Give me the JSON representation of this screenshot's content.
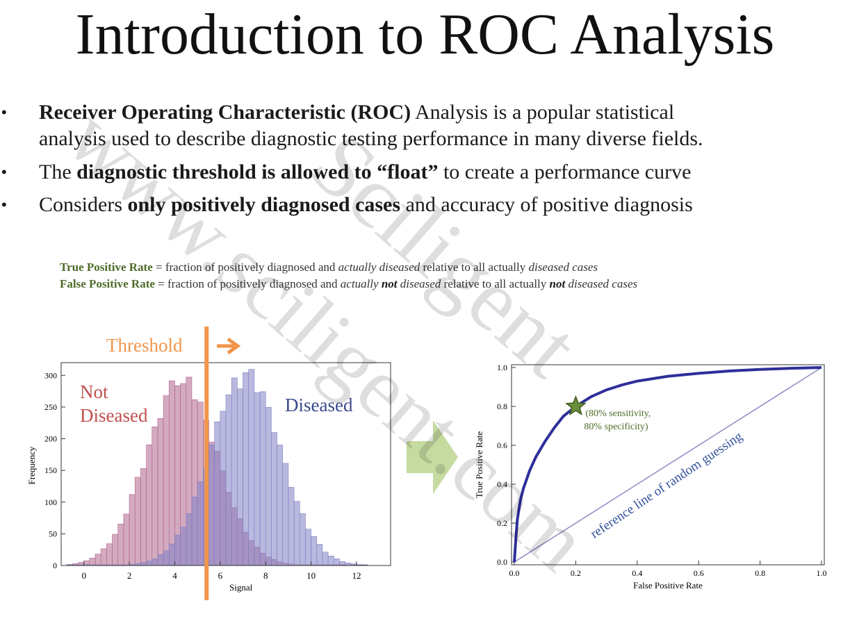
{
  "title": "Introduction to ROC Analysis",
  "bullets": [
    {
      "parts": [
        {
          "t": "Receiver Operating Characteristic (ROC)",
          "b": true
        },
        {
          "t": " Analysis is a popular statistical"
        }
      ],
      "line2": "analysis used to describe diagnostic testing performance in many diverse fields."
    },
    {
      "parts": [
        {
          "t": "The "
        },
        {
          "t": "diagnostic threshold is allowed to “float”",
          "b": true
        },
        {
          "t": " to create a performance curve"
        }
      ]
    },
    {
      "parts": [
        {
          "t": "Considers "
        },
        {
          "t": "only positively diagnosed cases",
          "b": true
        },
        {
          "t": " and accuracy of positive diagnosis"
        }
      ]
    }
  ],
  "definitions": {
    "tpr_term": "True Positive Rate",
    "tpr_mid": " = fraction of positively diagnosed and ",
    "tpr_em": "actually diseased",
    "tpr_tail": " relative to all actually ",
    "tpr_em2": "diseased cases",
    "fpr_term": "False Positive Rate",
    "fpr_mid": " = fraction of positively diagnosed and ",
    "fpr_em_a": "actually ",
    "fpr_em_not": "not",
    "fpr_em_b": " diseased",
    "fpr_tail": " relative to all actually ",
    "fpr_em2_not": "not",
    "fpr_em2_b": " diseased cases"
  },
  "histogram": {
    "threshold_label": "Threshold",
    "not_diseased_label_1": "Not",
    "not_diseased_label_2": "Diseased",
    "diseased_label": "Diseased",
    "xlabel": "Signal",
    "ylabel": "Frequency",
    "colors": {
      "not_diseased": "#b0648c",
      "diseased": "#7f80c4",
      "threshold": "#f0954a",
      "nd_text": "#c0504d",
      "d_text": "#3b4a8c"
    }
  },
  "roc": {
    "xlabel": "False Positive Rate",
    "ylabel": "True Positive Rate",
    "point_label_1": "(80% sensitivity,",
    "point_label_2": "80% specificity)",
    "reference_label": "reference line of random guessing",
    "colors": {
      "curve": "#2e2e9a",
      "reference": "#8b8bc8",
      "star": "#6b8e3a",
      "label": "#4e6b2a",
      "ref_text": "#34519c"
    }
  },
  "watermark": {
    "line1": "Sciligent",
    "line2": "www.sciligent.com"
  },
  "chart_data": [
    {
      "type": "bar",
      "xlabel": "Signal",
      "ylabel": "Frequency",
      "xlim": [
        -1,
        13.5
      ],
      "ylim": [
        0,
        320
      ],
      "x_ticks": [
        0,
        2,
        4,
        6,
        8,
        10,
        12
      ],
      "y_ticks": [
        0,
        50,
        100,
        150,
        200,
        250,
        300
      ],
      "threshold": 5.4,
      "series": [
        {
          "name": "Not Diseased",
          "mean": 4.3,
          "sd": 1.55,
          "peak": 287
        },
        {
          "name": "Diseased",
          "mean": 7.1,
          "sd": 1.55,
          "peak": 297
        }
      ]
    },
    {
      "type": "line",
      "xlabel": "False Positive Rate",
      "ylabel": "True Positive Rate",
      "xlim": [
        0,
        1
      ],
      "ylim": [
        0,
        1
      ],
      "ticks": [
        0.0,
        0.2,
        0.4,
        0.6,
        0.8,
        1.0
      ],
      "x": [
        0,
        0.005,
        0.01,
        0.02,
        0.03,
        0.05,
        0.07,
        0.1,
        0.13,
        0.16,
        0.2,
        0.25,
        0.3,
        0.35,
        0.4,
        0.5,
        0.6,
        0.7,
        0.8,
        0.9,
        1.0
      ],
      "y": [
        0,
        0.12,
        0.22,
        0.32,
        0.38,
        0.47,
        0.54,
        0.62,
        0.69,
        0.75,
        0.8,
        0.85,
        0.885,
        0.91,
        0.93,
        0.955,
        0.97,
        0.982,
        0.99,
        0.996,
        1.0
      ],
      "reference_line": {
        "x": [
          0,
          1
        ],
        "y": [
          0,
          1
        ]
      },
      "highlight": {
        "x": 0.2,
        "y": 0.8
      }
    }
  ]
}
